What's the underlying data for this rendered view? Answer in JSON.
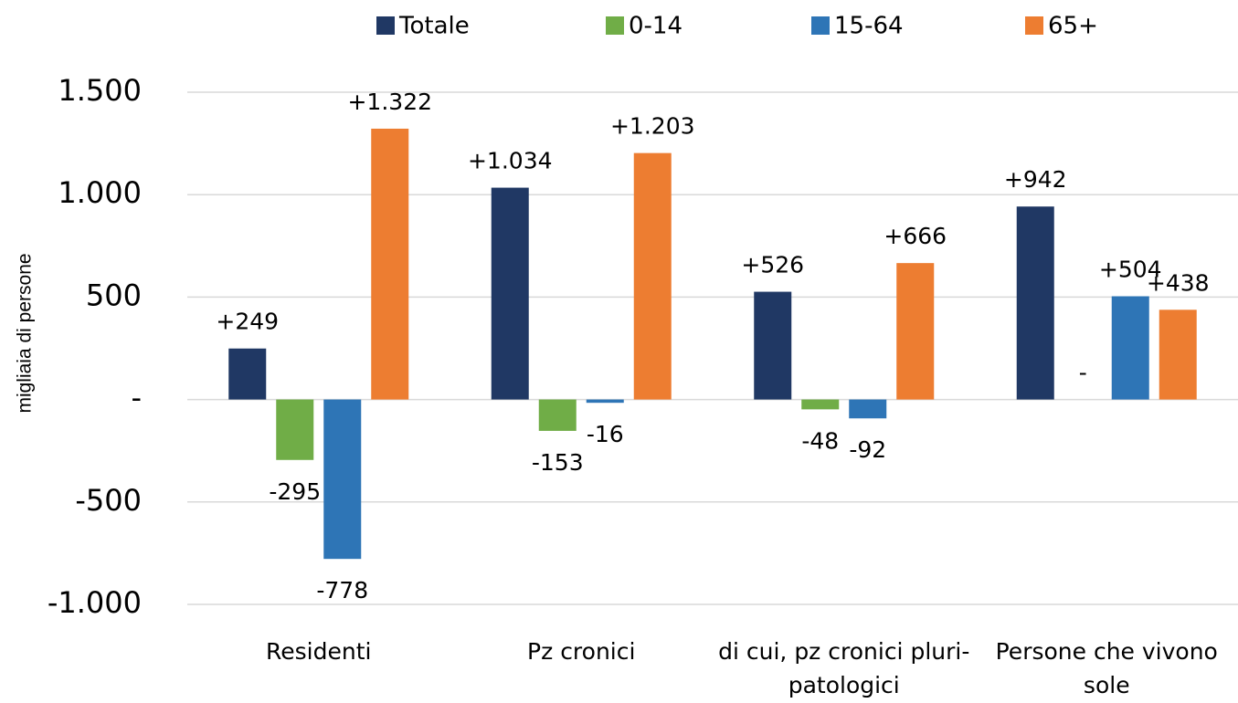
{
  "chart_data": {
    "type": "bar",
    "y_label": "migliaia di persone",
    "categories": [
      "Residenti",
      "Pz cronici",
      "di cui, pz cronici pluri-patologici",
      "Persone che vivono sole"
    ],
    "series": [
      {
        "name": "Totale",
        "color": "#203864",
        "values": [
          249,
          1034,
          526,
          942
        ],
        "value_labels": [
          "+249",
          "+1.034",
          "+526",
          "+942"
        ]
      },
      {
        "name": "0-14",
        "color": "#70ad47",
        "values": [
          -295,
          -153,
          -48,
          0
        ],
        "value_labels": [
          "-295",
          "-153",
          "-48",
          "-"
        ]
      },
      {
        "name": "15-64",
        "color": "#2e75b6",
        "values": [
          -778,
          -16,
          -92,
          504
        ],
        "value_labels": [
          "-778",
          "-16",
          "-92",
          "+504"
        ]
      },
      {
        "name": "65+",
        "color": "#ed7d31",
        "values": [
          1322,
          1203,
          666,
          438
        ],
        "value_labels": [
          "+1.322",
          "+1.203",
          "+666",
          "+438"
        ]
      }
    ],
    "ylim": [
      -1000,
      1500
    ],
    "yticks": [
      {
        "value": -1000,
        "label": "-1.000"
      },
      -500,
      {
        "value": 0,
        "label": "-"
      },
      500,
      {
        "value": 1000,
        "label": "1.000"
      },
      {
        "value": 1500,
        "label": "1.500"
      }
    ],
    "grid": true,
    "legend": "top"
  }
}
